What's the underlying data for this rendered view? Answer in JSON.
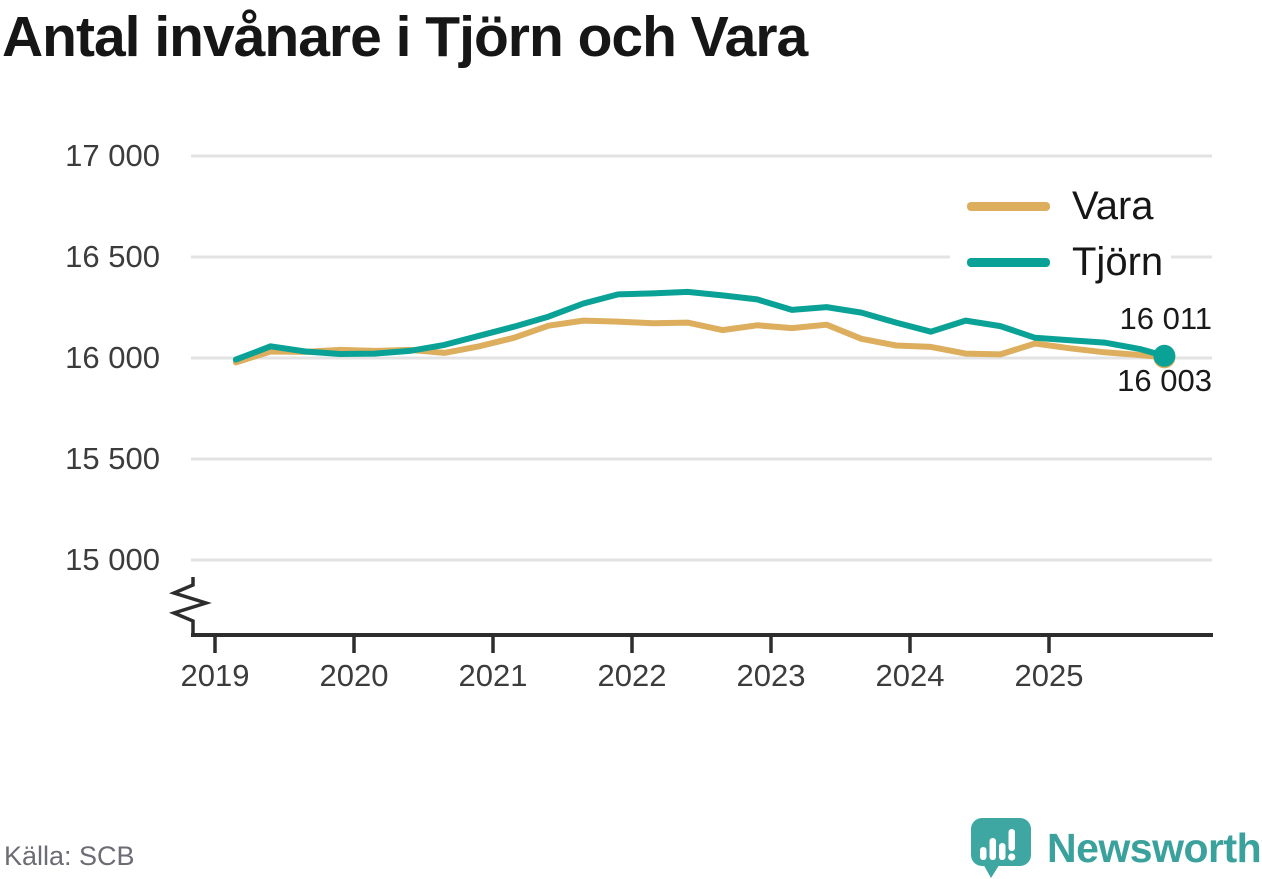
{
  "title": "Antal invånare i Tjörn och Vara",
  "source": "Källa: SCB",
  "branding": {
    "logo_text": "Newsworthy",
    "logo_color": "#3ea7a2"
  },
  "legend": [
    {
      "label": "Vara",
      "color": "#dcae5e"
    },
    {
      "label": "Tjörn",
      "color": "#0aa296"
    }
  ],
  "chart_data": {
    "type": "line",
    "title": "Antal invånare i Tjörn och Vara",
    "xlabel": "",
    "ylabel": "",
    "grid": "horizontal",
    "legend_position": "top-right",
    "y_axis": {
      "broken_axis": true,
      "ylim": [
        15000,
        17000
      ],
      "ticks": [
        {
          "value": 17000,
          "label": "17 000"
        },
        {
          "value": 16500,
          "label": "16 500"
        },
        {
          "value": 16000,
          "label": "16 000"
        },
        {
          "value": 15500,
          "label": "15 500"
        },
        {
          "value": 15000,
          "label": "15 000"
        }
      ]
    },
    "x_axis": {
      "ticks": [
        {
          "value": 2019,
          "label": "2019"
        },
        {
          "value": 2020,
          "label": "2020"
        },
        {
          "value": 2021,
          "label": "2021"
        },
        {
          "value": 2022,
          "label": "2022"
        },
        {
          "value": 2023,
          "label": "2023"
        },
        {
          "value": 2024,
          "label": "2024"
        },
        {
          "value": 2025,
          "label": "2025"
        }
      ]
    },
    "x": [
      2019.15,
      2019.4,
      2019.65,
      2019.9,
      2020.15,
      2020.4,
      2020.65,
      2020.9,
      2021.15,
      2021.4,
      2021.65,
      2021.9,
      2022.15,
      2022.4,
      2022.65,
      2022.9,
      2023.15,
      2023.4,
      2023.65,
      2023.9,
      2024.15,
      2024.4,
      2024.65,
      2024.9,
      2025.15,
      2025.4,
      2025.65,
      2025.83
    ],
    "series": [
      {
        "name": "Vara",
        "color": "#dcae5e",
        "end_dot": true,
        "values": [
          15978,
          16032,
          16030,
          16040,
          16035,
          16040,
          16025,
          16058,
          16100,
          16160,
          16185,
          16180,
          16172,
          16175,
          16138,
          16162,
          16148,
          16165,
          16095,
          16062,
          16055,
          16022,
          16018,
          16072,
          16048,
          16028,
          16015,
          16003
        ]
      },
      {
        "name": "Tjörn",
        "color": "#0aa296",
        "end_dot": true,
        "values": [
          15992,
          16058,
          16032,
          16020,
          16022,
          16035,
          16065,
          16110,
          16155,
          16205,
          16270,
          16315,
          16320,
          16327,
          16310,
          16290,
          16238,
          16252,
          16225,
          16175,
          16130,
          16185,
          16158,
          16100,
          16088,
          16076,
          16045,
          16011
        ]
      }
    ],
    "end_labels": [
      {
        "series": "Tjörn",
        "value": 16011,
        "label": "16 011"
      },
      {
        "series": "Vara",
        "value": 16003,
        "label": "16 003"
      }
    ]
  }
}
